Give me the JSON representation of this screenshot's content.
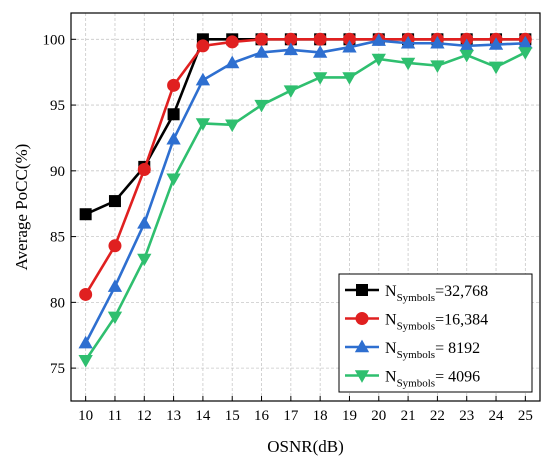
{
  "chart_data": {
    "type": "line",
    "title": "",
    "xlabel": "OSNR(dB)",
    "ylabel": "Average PoCC(%)",
    "xlim": [
      9.5,
      25.5
    ],
    "ylim": [
      72.5,
      102
    ],
    "x_ticks": [
      10,
      11,
      12,
      13,
      14,
      15,
      16,
      17,
      18,
      19,
      20,
      21,
      22,
      23,
      24,
      25
    ],
    "y_ticks": [
      75,
      80,
      85,
      90,
      95,
      100
    ],
    "grid": true,
    "legend_position": "bottom-right",
    "x": [
      10,
      11,
      12,
      13,
      14,
      15,
      16,
      17,
      18,
      19,
      20,
      21,
      22,
      23,
      24,
      25
    ],
    "series": [
      {
        "name_main": "N",
        "name_sub": "Symbols",
        "name_value": "=32,768",
        "color": "#000000",
        "marker": "square",
        "values": [
          86.7,
          87.7,
          90.3,
          94.3,
          100.0,
          100.0,
          100.0,
          100.0,
          100.0,
          100.0,
          100.0,
          100.0,
          100.0,
          100.0,
          100.0,
          100.0
        ]
      },
      {
        "name_main": "N",
        "name_sub": "Symbols",
        "name_value": "=16,384",
        "color": "#e02020",
        "marker": "circle",
        "values": [
          80.6,
          84.3,
          90.1,
          96.5,
          99.5,
          99.8,
          100.0,
          100.0,
          100.0,
          100.0,
          100.0,
          100.0,
          100.0,
          100.0,
          100.0,
          100.0
        ]
      },
      {
        "name_main": "N",
        "name_sub": "Symbols",
        "name_value": "= 8192",
        "color": "#2e6fd0",
        "marker": "triangle-up",
        "values": [
          76.9,
          81.2,
          86.0,
          92.4,
          96.9,
          98.2,
          99.0,
          99.2,
          99.0,
          99.4,
          99.9,
          99.7,
          99.7,
          99.5,
          99.6,
          99.7
        ]
      },
      {
        "name_main": "N",
        "name_sub": "Symbols",
        "name_value": "= 4096",
        "color": "#2fbf6f",
        "marker": "triangle-down",
        "values": [
          75.6,
          78.9,
          83.3,
          89.4,
          93.6,
          93.5,
          95.0,
          96.1,
          97.1,
          97.1,
          98.5,
          98.2,
          98.0,
          98.8,
          97.9,
          99.0
        ]
      }
    ]
  }
}
